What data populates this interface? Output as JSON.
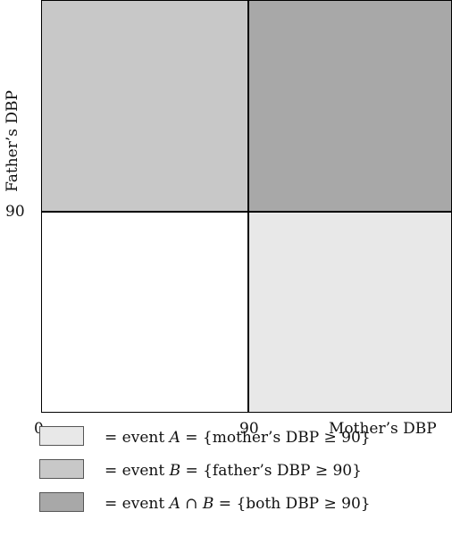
{
  "diagram": {
    "y_axis_label": "Father’s DBP",
    "x_axis_label": "Mother’s DBP",
    "y_tick": "90",
    "x_tick_zero": "0",
    "x_tick_90": "90",
    "colors": {
      "event_a": "#e8e8e8",
      "event_b": "#c8c8c8",
      "both": "#a8a8a8",
      "neither": "#ffffff"
    }
  },
  "legend": [
    {
      "prefix": "= event ",
      "event": "A",
      "suffix": " = {mother’s DBP ≥ 90}",
      "color": "#e8e8e8"
    },
    {
      "prefix": "= event ",
      "event": "B",
      "suffix": " = {father’s DBP ≥ 90}",
      "color": "#c8c8c8"
    },
    {
      "prefix": "= event ",
      "event": "A ∩ B",
      "suffix": " = {both DBP ≥ 90}",
      "color": "#a8a8a8"
    }
  ]
}
